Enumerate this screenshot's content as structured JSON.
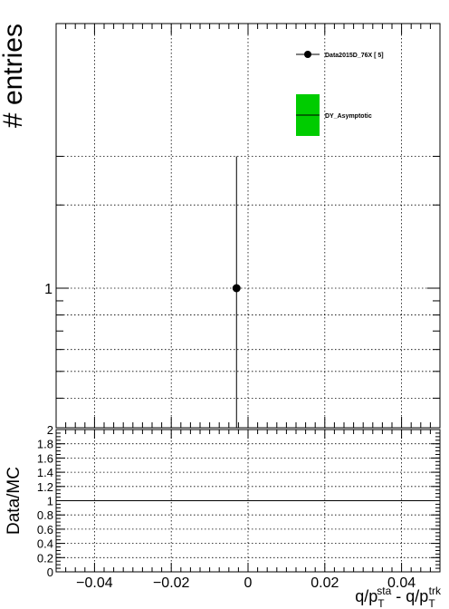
{
  "chart_data": [
    {
      "type": "scatter",
      "panel": "upper",
      "ylabel": "# entries",
      "xlim": [
        -0.05,
        0.05
      ],
      "y_log_scale": true,
      "yticks_labeled": [
        "1"
      ],
      "grid": true,
      "legend_position": "top-right",
      "series": [
        {
          "name": "Data2015D_76X [        5]",
          "style": "points-with-errorbars",
          "color": "#000000",
          "points": [
            {
              "x": -0.003,
              "y": 1,
              "y_err_high": "above axis",
              "y_err_low": "below axis"
            }
          ]
        },
        {
          "name": "DY_Asymptotic",
          "style": "filled-band",
          "color": "#00cc00",
          "points": []
        }
      ]
    },
    {
      "type": "line",
      "panel": "ratio",
      "ylabel": "Data/MC",
      "xlabel": "q/p_T^{sta} - q/p_T^{trk}",
      "xlabel_parts": {
        "main": "q/p",
        "sub1": "T",
        "sup1": "sta",
        "mid": " - q/p",
        "sub2": "T",
        "sup2": "trk"
      },
      "xlim": [
        -0.05,
        0.05
      ],
      "ylim": [
        0,
        2
      ],
      "xticks": [
        "−0.04",
        "−0.02",
        "0",
        "0.02",
        "0.04"
      ],
      "yticks": [
        "0",
        "0.2",
        "0.4",
        "0.6",
        "0.8",
        "1",
        "1.2",
        "1.4",
        "1.6",
        "1.8",
        "2"
      ],
      "grid": true,
      "reference_line": 1
    }
  ]
}
